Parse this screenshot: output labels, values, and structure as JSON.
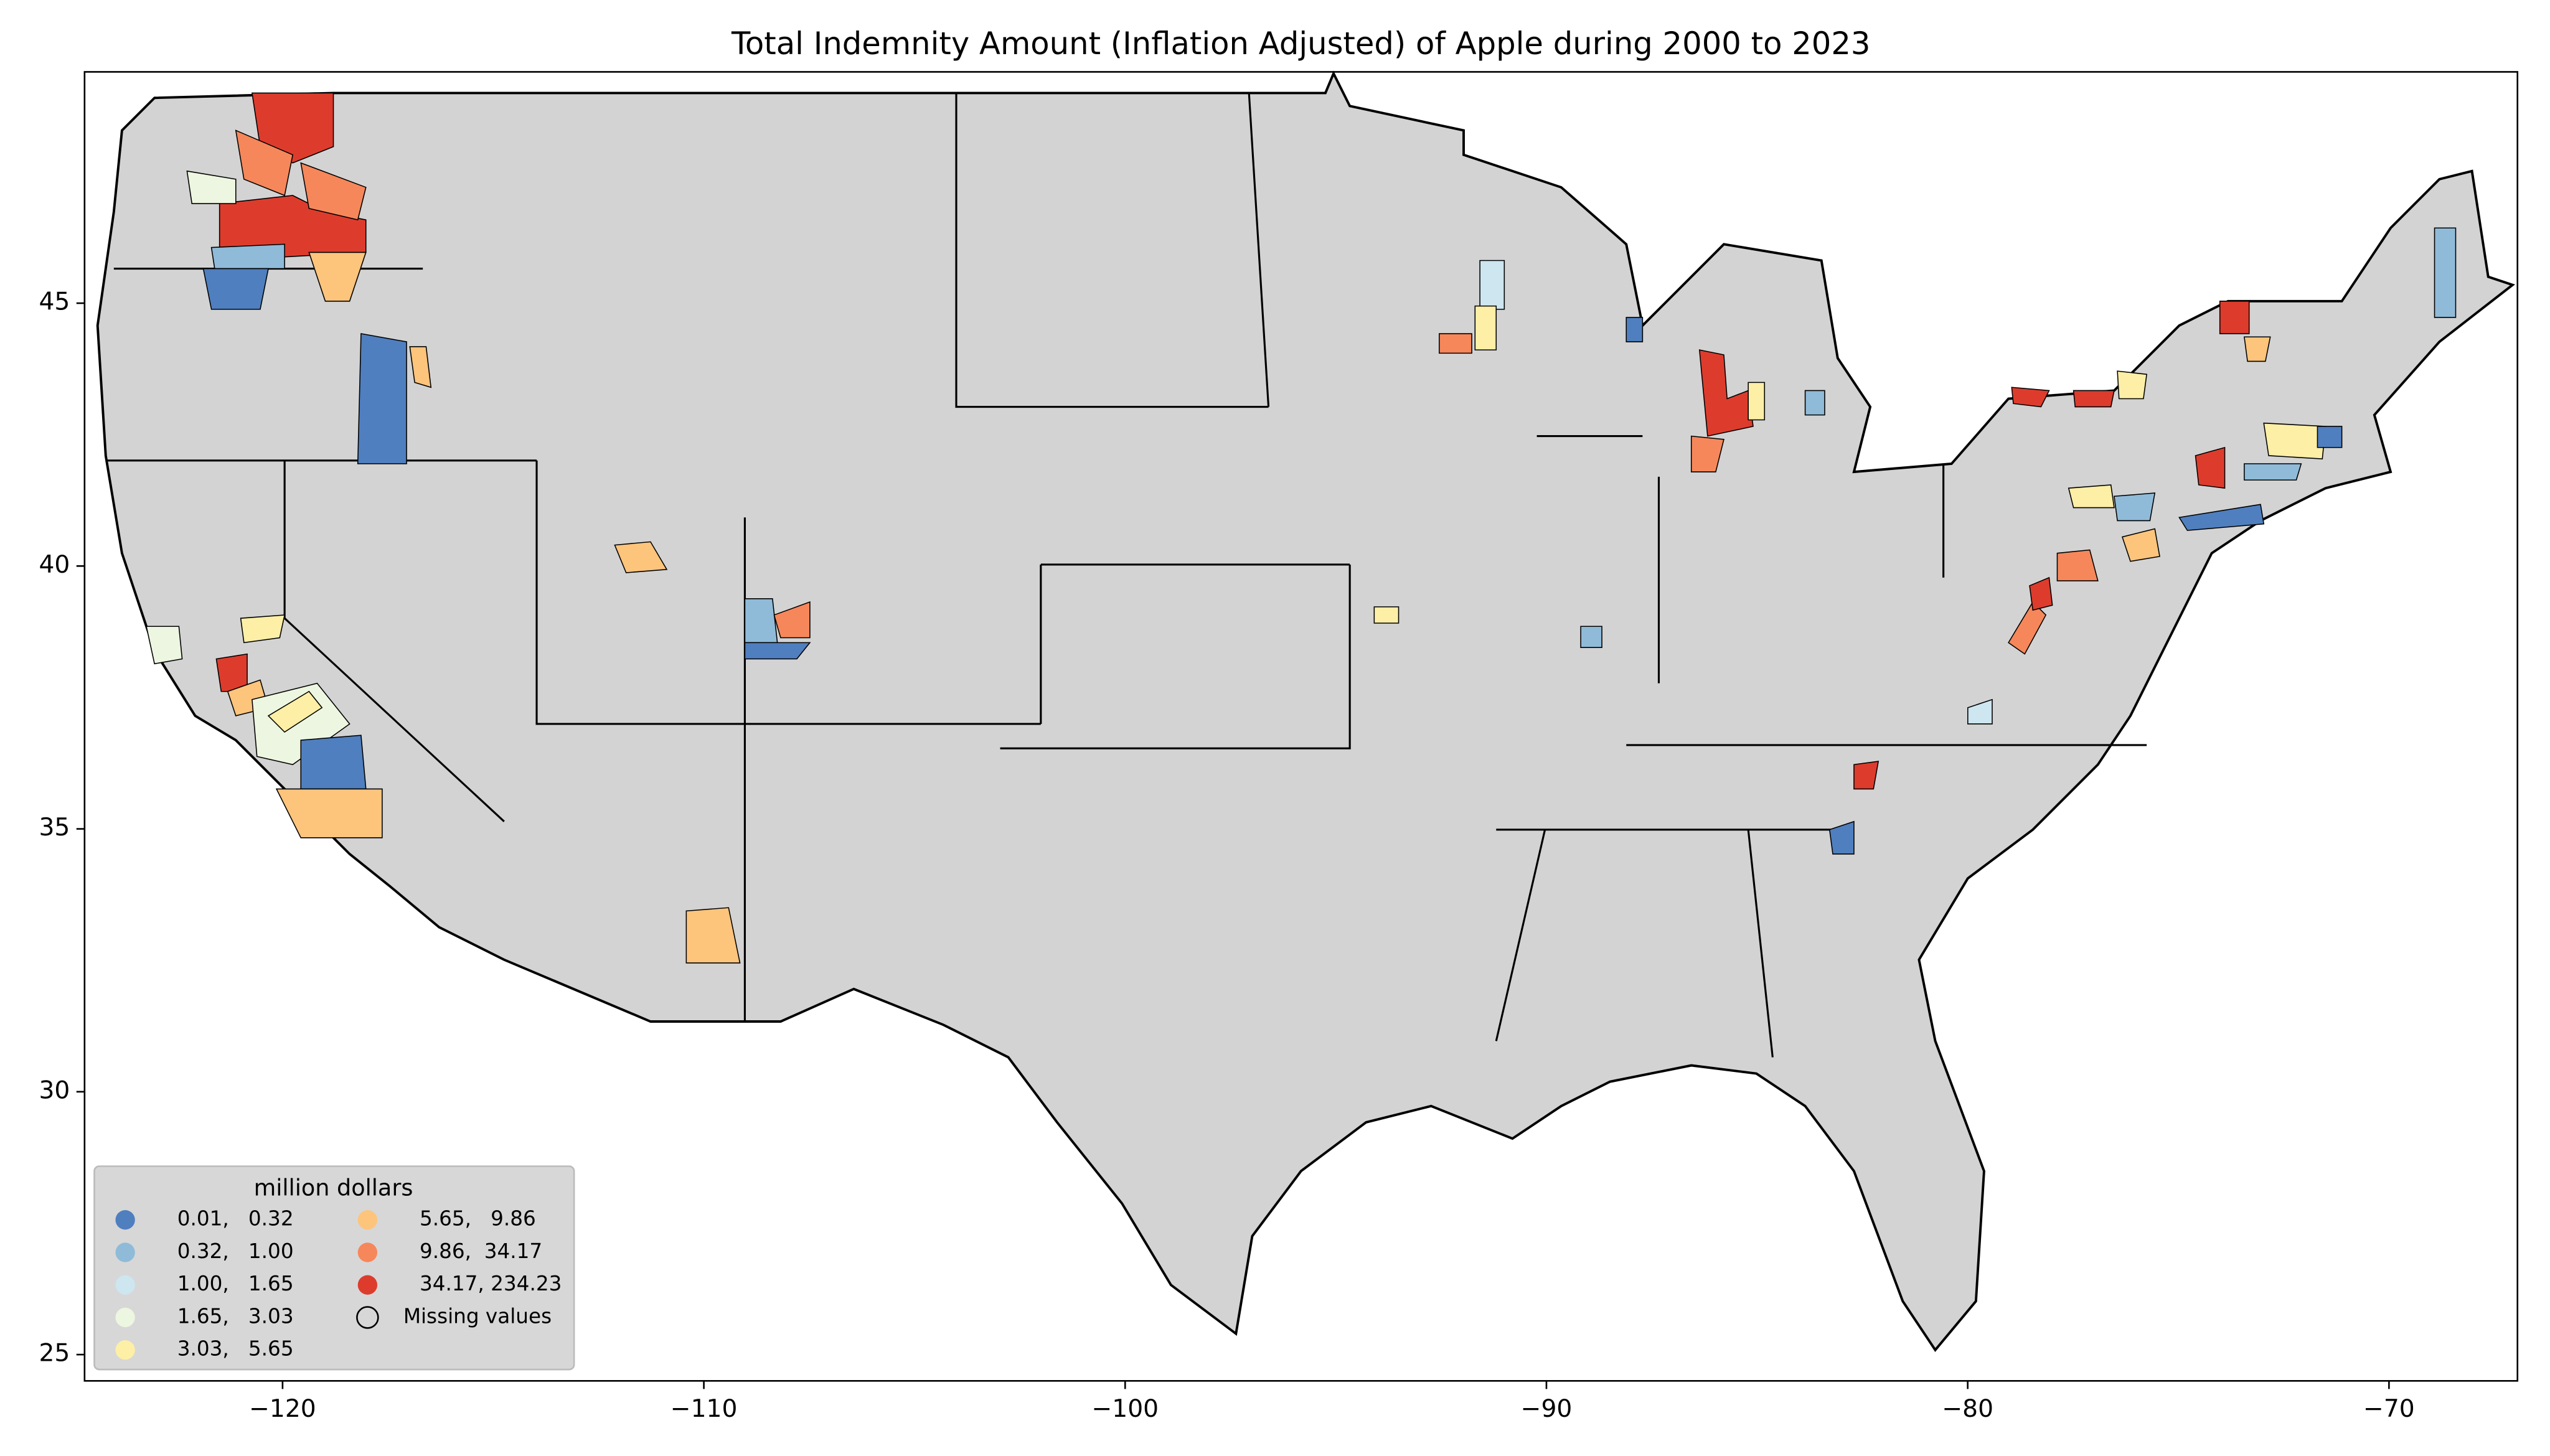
{
  "chart_data": {
    "type": "map",
    "title": "Total Indemnity Amount  (Inflation Adjusted) of Apple during 2000 to 2023",
    "xlim": [
      -124.7,
      -66.95
    ],
    "ylim": [
      24.5,
      49.4
    ],
    "xticks": [
      {
        "value": -120,
        "label": "−120"
      },
      {
        "value": -110,
        "label": "−110"
      },
      {
        "value": -100,
        "label": "−100"
      },
      {
        "value": -90,
        "label": "−90"
      },
      {
        "value": -80,
        "label": "−80"
      },
      {
        "value": -70,
        "label": "−70"
      }
    ],
    "yticks": [
      25,
      30,
      35,
      40,
      45
    ],
    "missing_color": "#d3d3d3",
    "legend": {
      "title": "million dollars",
      "location": "lower left",
      "entries": [
        {
          "label": "0.01,   0.32",
          "color": "#4f7fbf"
        },
        {
          "label": "0.32,   1.00",
          "color": "#8fbbd9"
        },
        {
          "label": "1.00,   1.65",
          "color": "#cde6f0"
        },
        {
          "label": "1.65,   3.03",
          "color": "#edf6e0"
        },
        {
          "label": "3.03,   5.65",
          "color": "#fdefa6"
        },
        {
          "label": "5.65,   9.86",
          "color": "#fdc47c"
        },
        {
          "label": "9.86,  34.17",
          "color": "#f6875a"
        },
        {
          "label": "34.17, 234.23",
          "color": "#dd3c2d"
        }
      ],
      "missing_label": "Missing values"
    }
  }
}
